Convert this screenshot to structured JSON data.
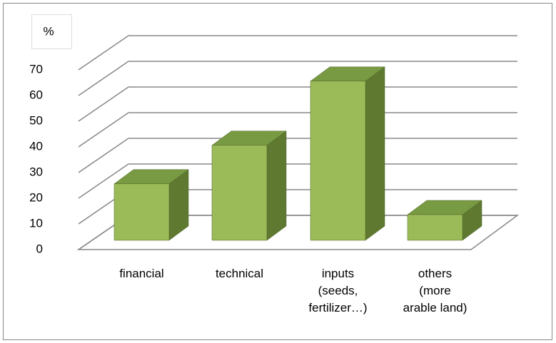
{
  "chart_data": {
    "type": "bar3d",
    "ylabel": "%",
    "categories": [
      "financial",
      "technical",
      "inputs\n(seeds,\nfertilizer…)",
      "others\n(more\narable land)"
    ],
    "values": [
      22,
      37,
      62,
      10
    ],
    "color": "#9bbb59",
    "ylim": [
      0,
      70
    ],
    "yticks": [
      0,
      10,
      20,
      30,
      40,
      50,
      60,
      70
    ],
    "grid": true
  }
}
